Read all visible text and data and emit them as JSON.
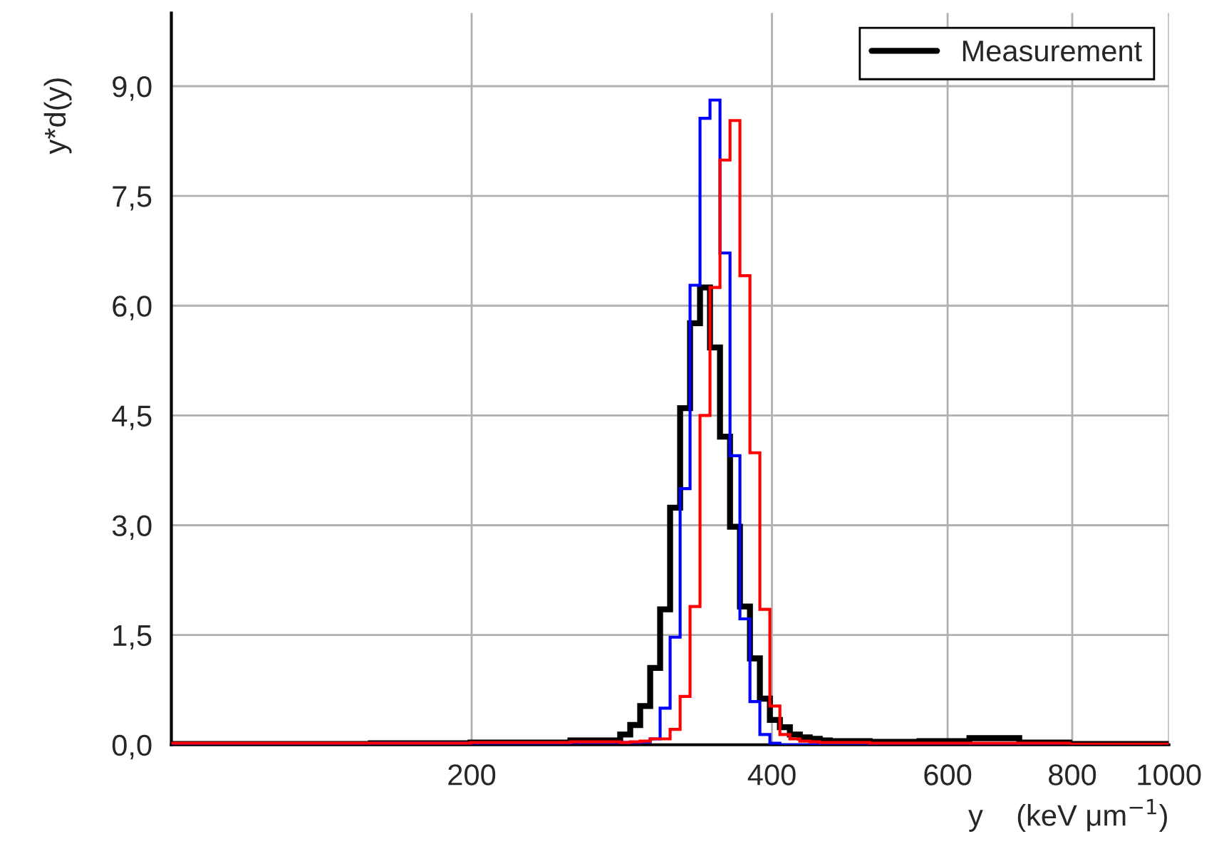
{
  "chart_data": {
    "type": "histogram",
    "xlabel": "y    (keV μm$^{−1}$)",
    "ylabel": "y*d(y)",
    "bins": [
      100,
      158.5,
      199.5,
      251.2,
      281.8,
      288.4,
      295.1,
      302.0,
      309.0,
      316.2,
      323.6,
      331.1,
      338.8,
      346.7,
      354.8,
      363.1,
      371.5,
      380.2,
      389.0,
      398.1,
      407.4,
      416.9,
      426.6,
      436.5,
      446.7,
      457.1,
      501.2,
      562.3,
      631.0,
      707.9,
      794.3,
      1000
    ],
    "series": [
      {
        "name": "Measurement",
        "color": "#000000",
        "values": [
          0.01,
          0.02,
          0.03,
          0.06,
          0.14,
          0.27,
          0.53,
          1.05,
          1.85,
          3.24,
          4.6,
          5.76,
          6.25,
          5.43,
          4.21,
          2.98,
          1.89,
          1.18,
          0.63,
          0.34,
          0.24,
          0.14,
          0.1,
          0.08,
          0.06,
          0.05,
          0.04,
          0.05,
          0.09,
          0.03,
          0.01
        ]
      },
      {
        "color": "#0000ff",
        "values": [
          0.01,
          0.02,
          0.02,
          0.03,
          0.03,
          0.03,
          0.04,
          0.08,
          0.5,
          1.47,
          3.5,
          6.28,
          8.56,
          8.81,
          6.72,
          3.95,
          1.72,
          0.59,
          0.14,
          0.02,
          0,
          0,
          0,
          0,
          0,
          0,
          0,
          0,
          0,
          0,
          0
        ]
      },
      {
        "color": "#ff0000",
        "values": [
          0.02,
          0.02,
          0.03,
          0.04,
          0.03,
          0.04,
          0.05,
          0.08,
          0.08,
          0.21,
          0.66,
          1.89,
          4.5,
          6.25,
          7.99,
          8.53,
          6.41,
          3.99,
          1.85,
          0.53,
          0.14,
          0.08,
          0.05,
          0.04,
          0.03,
          0.03,
          0.02,
          0.02,
          0.02,
          0.02,
          0.01
        ]
      }
    ],
    "log": "x",
    "xlim": [
      100,
      1000
    ],
    "xticks": [
      200,
      400,
      600,
      800,
      1000
    ],
    "ylim": [
      0,
      10
    ],
    "yticks": [
      {
        "value": 0,
        "label": "0,0"
      },
      {
        "value": 1.5,
        "label": "1,5"
      },
      {
        "value": 3,
        "label": "3,0"
      },
      {
        "value": 4.5,
        "label": "4,5"
      },
      {
        "value": 6,
        "label": "6,0"
      },
      {
        "value": 7.5,
        "label": "7,5"
      },
      {
        "value": 9,
        "label": "9,0"
      }
    ],
    "grid": true,
    "legend": "top right"
  }
}
